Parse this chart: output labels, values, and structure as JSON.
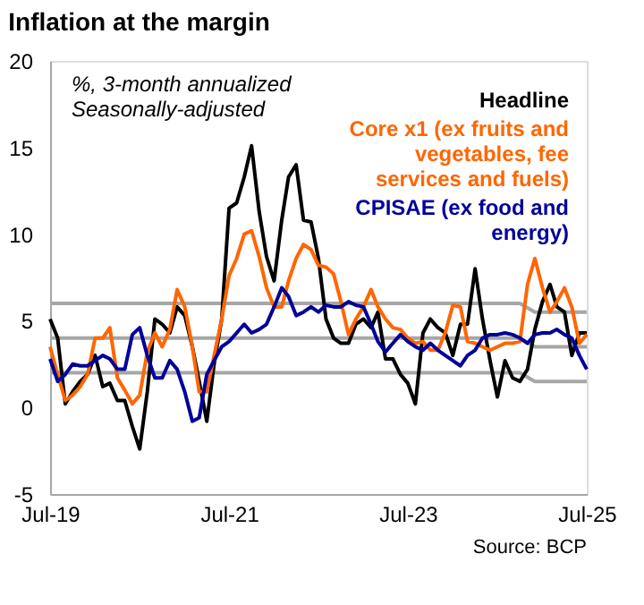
{
  "chart_data": {
    "type": "line",
    "title": "Inflation at the margin",
    "subtitle": "%, 3-month annualized\nSeasonally-adjusted",
    "x": [
      "2019-07",
      "2019-08",
      "2019-09",
      "2019-10",
      "2019-11",
      "2019-12",
      "2020-01",
      "2020-02",
      "2020-03",
      "2020-04",
      "2020-05",
      "2020-06",
      "2020-07",
      "2020-08",
      "2020-09",
      "2020-10",
      "2020-11",
      "2020-12",
      "2021-01",
      "2021-02",
      "2021-03",
      "2021-04",
      "2021-05",
      "2021-06",
      "2021-07",
      "2021-08",
      "2021-09",
      "2021-10",
      "2021-11",
      "2021-12",
      "2022-01",
      "2022-02",
      "2022-03",
      "2022-04",
      "2022-05",
      "2022-06",
      "2022-07",
      "2022-08",
      "2022-09",
      "2022-10",
      "2022-11",
      "2022-12",
      "2023-01",
      "2023-02",
      "2023-03",
      "2023-04",
      "2023-05",
      "2023-06",
      "2023-07",
      "2023-08",
      "2023-09",
      "2023-10",
      "2023-11",
      "2023-12",
      "2024-01",
      "2024-02",
      "2024-03",
      "2024-04",
      "2024-05",
      "2024-06",
      "2024-07",
      "2024-08",
      "2024-09",
      "2024-10",
      "2024-11",
      "2024-12",
      "2025-01",
      "2025-02",
      "2025-03",
      "2025-04",
      "2025-05",
      "2025-06",
      "2025-07"
    ],
    "series": [
      {
        "name": "Headline",
        "color": "#000000",
        "values": [
          5.1,
          4.0,
          0.2,
          0.9,
          1.5,
          1.9,
          3.0,
          1.2,
          1.4,
          0.4,
          0.4,
          -1.1,
          -2.4,
          0.9,
          5.1,
          4.8,
          4.3,
          5.8,
          5.3,
          3.5,
          1.5,
          -0.8,
          2.5,
          5.1,
          11.5,
          11.8,
          13.3,
          15.1,
          11.3,
          8.7,
          7.3,
          10.8,
          13.3,
          14.0,
          10.8,
          10.7,
          8.6,
          5.1,
          4.0,
          3.7,
          3.7,
          4.8,
          5.1,
          4.6,
          5.5,
          2.8,
          2.8,
          1.9,
          1.4,
          0.2,
          4.3,
          5.1,
          4.6,
          4.3,
          3.0,
          4.8,
          4.8,
          8.0,
          5.1,
          2.7,
          0.6,
          2.7,
          1.7,
          1.5,
          2.2,
          4.5,
          6.1,
          7.1,
          5.8,
          5.5,
          3.0,
          4.3,
          4.3
        ]
      },
      {
        "name": "Core x1 (ex fruits and vegetables, fee services and fuels)",
        "color": "#ff6600",
        "values": [
          3.5,
          1.9,
          0.4,
          0.7,
          1.2,
          1.9,
          4.0,
          4.0,
          4.6,
          1.7,
          1.0,
          0.2,
          0.7,
          3.2,
          4.3,
          3.5,
          4.5,
          6.8,
          5.8,
          3.5,
          0.9,
          0.9,
          3.0,
          5.1,
          7.6,
          8.6,
          10.0,
          10.2,
          8.7,
          6.9,
          5.8,
          5.8,
          7.3,
          8.6,
          9.4,
          9.1,
          8.2,
          8.1,
          7.7,
          6.1,
          4.2,
          5.1,
          5.8,
          6.8,
          5.8,
          5.1,
          4.6,
          4.5,
          4.0,
          3.7,
          3.8,
          3.3,
          3.3,
          4.3,
          5.9,
          5.8,
          3.8,
          3.7,
          3.5,
          3.3,
          3.5,
          3.7,
          3.7,
          3.8,
          7.1,
          8.6,
          6.9,
          5.5,
          6.1,
          6.9,
          5.8,
          3.7,
          4.2
        ]
      },
      {
        "name": "CPISAE (ex food and energy)",
        "color": "#000099",
        "values": [
          2.8,
          1.5,
          1.9,
          2.5,
          2.4,
          2.4,
          2.7,
          3.0,
          2.8,
          2.2,
          2.2,
          4.2,
          4.6,
          3.0,
          1.7,
          1.7,
          2.7,
          2.2,
          0.9,
          -0.8,
          -0.6,
          1.9,
          2.7,
          3.5,
          3.8,
          4.3,
          4.8,
          4.3,
          4.5,
          4.8,
          5.8,
          6.9,
          6.4,
          5.3,
          5.5,
          5.8,
          5.5,
          5.9,
          5.8,
          5.8,
          6.1,
          5.9,
          5.8,
          4.8,
          3.8,
          3.2,
          3.7,
          4.2,
          3.8,
          3.5,
          3.3,
          3.7,
          3.3,
          3.0,
          2.7,
          2.4,
          3.0,
          3.3,
          4.0,
          4.2,
          4.2,
          4.3,
          4.2,
          4.0,
          3.7,
          4.2,
          4.3,
          4.3,
          4.5,
          4.2,
          4.0,
          3.0,
          2.2
        ]
      },
      {
        "type": "line",
        "color": "#a6a6a6",
        "x": [
          "2019-07",
          "2024-10",
          "2024-12",
          "2025-07"
        ],
        "values": [
          6,
          6,
          5.5,
          5.5
        ]
      },
      {
        "type": "line",
        "color": "#a6a6a6",
        "x": [
          "2019-07",
          "2024-10",
          "2024-12",
          "2025-07"
        ],
        "values": [
          4,
          4,
          3.5,
          3.5
        ]
      },
      {
        "type": "line",
        "color": "#a6a6a6",
        "x": [
          "2019-07",
          "2024-10",
          "2024-12",
          "2025-07"
        ],
        "values": [
          2,
          2,
          1.5,
          1.5
        ]
      }
    ],
    "xlim": [
      "2019-07",
      "2025-07"
    ],
    "xticks": [
      {
        "value": "2019-07",
        "label": "Jul-19"
      },
      {
        "value": "2021-07",
        "label": "Jul-21"
      },
      {
        "value": "2023-07",
        "label": "Jul-23"
      },
      {
        "value": "2025-07",
        "label": "Jul-25"
      }
    ],
    "ylim": [
      -5,
      20
    ],
    "yticks": [
      -5,
      0,
      5,
      10,
      15,
      20
    ],
    "legend": "top right",
    "marker": "none",
    "line_style": "solid",
    "annotations": [
      "Source: BCP"
    ]
  }
}
